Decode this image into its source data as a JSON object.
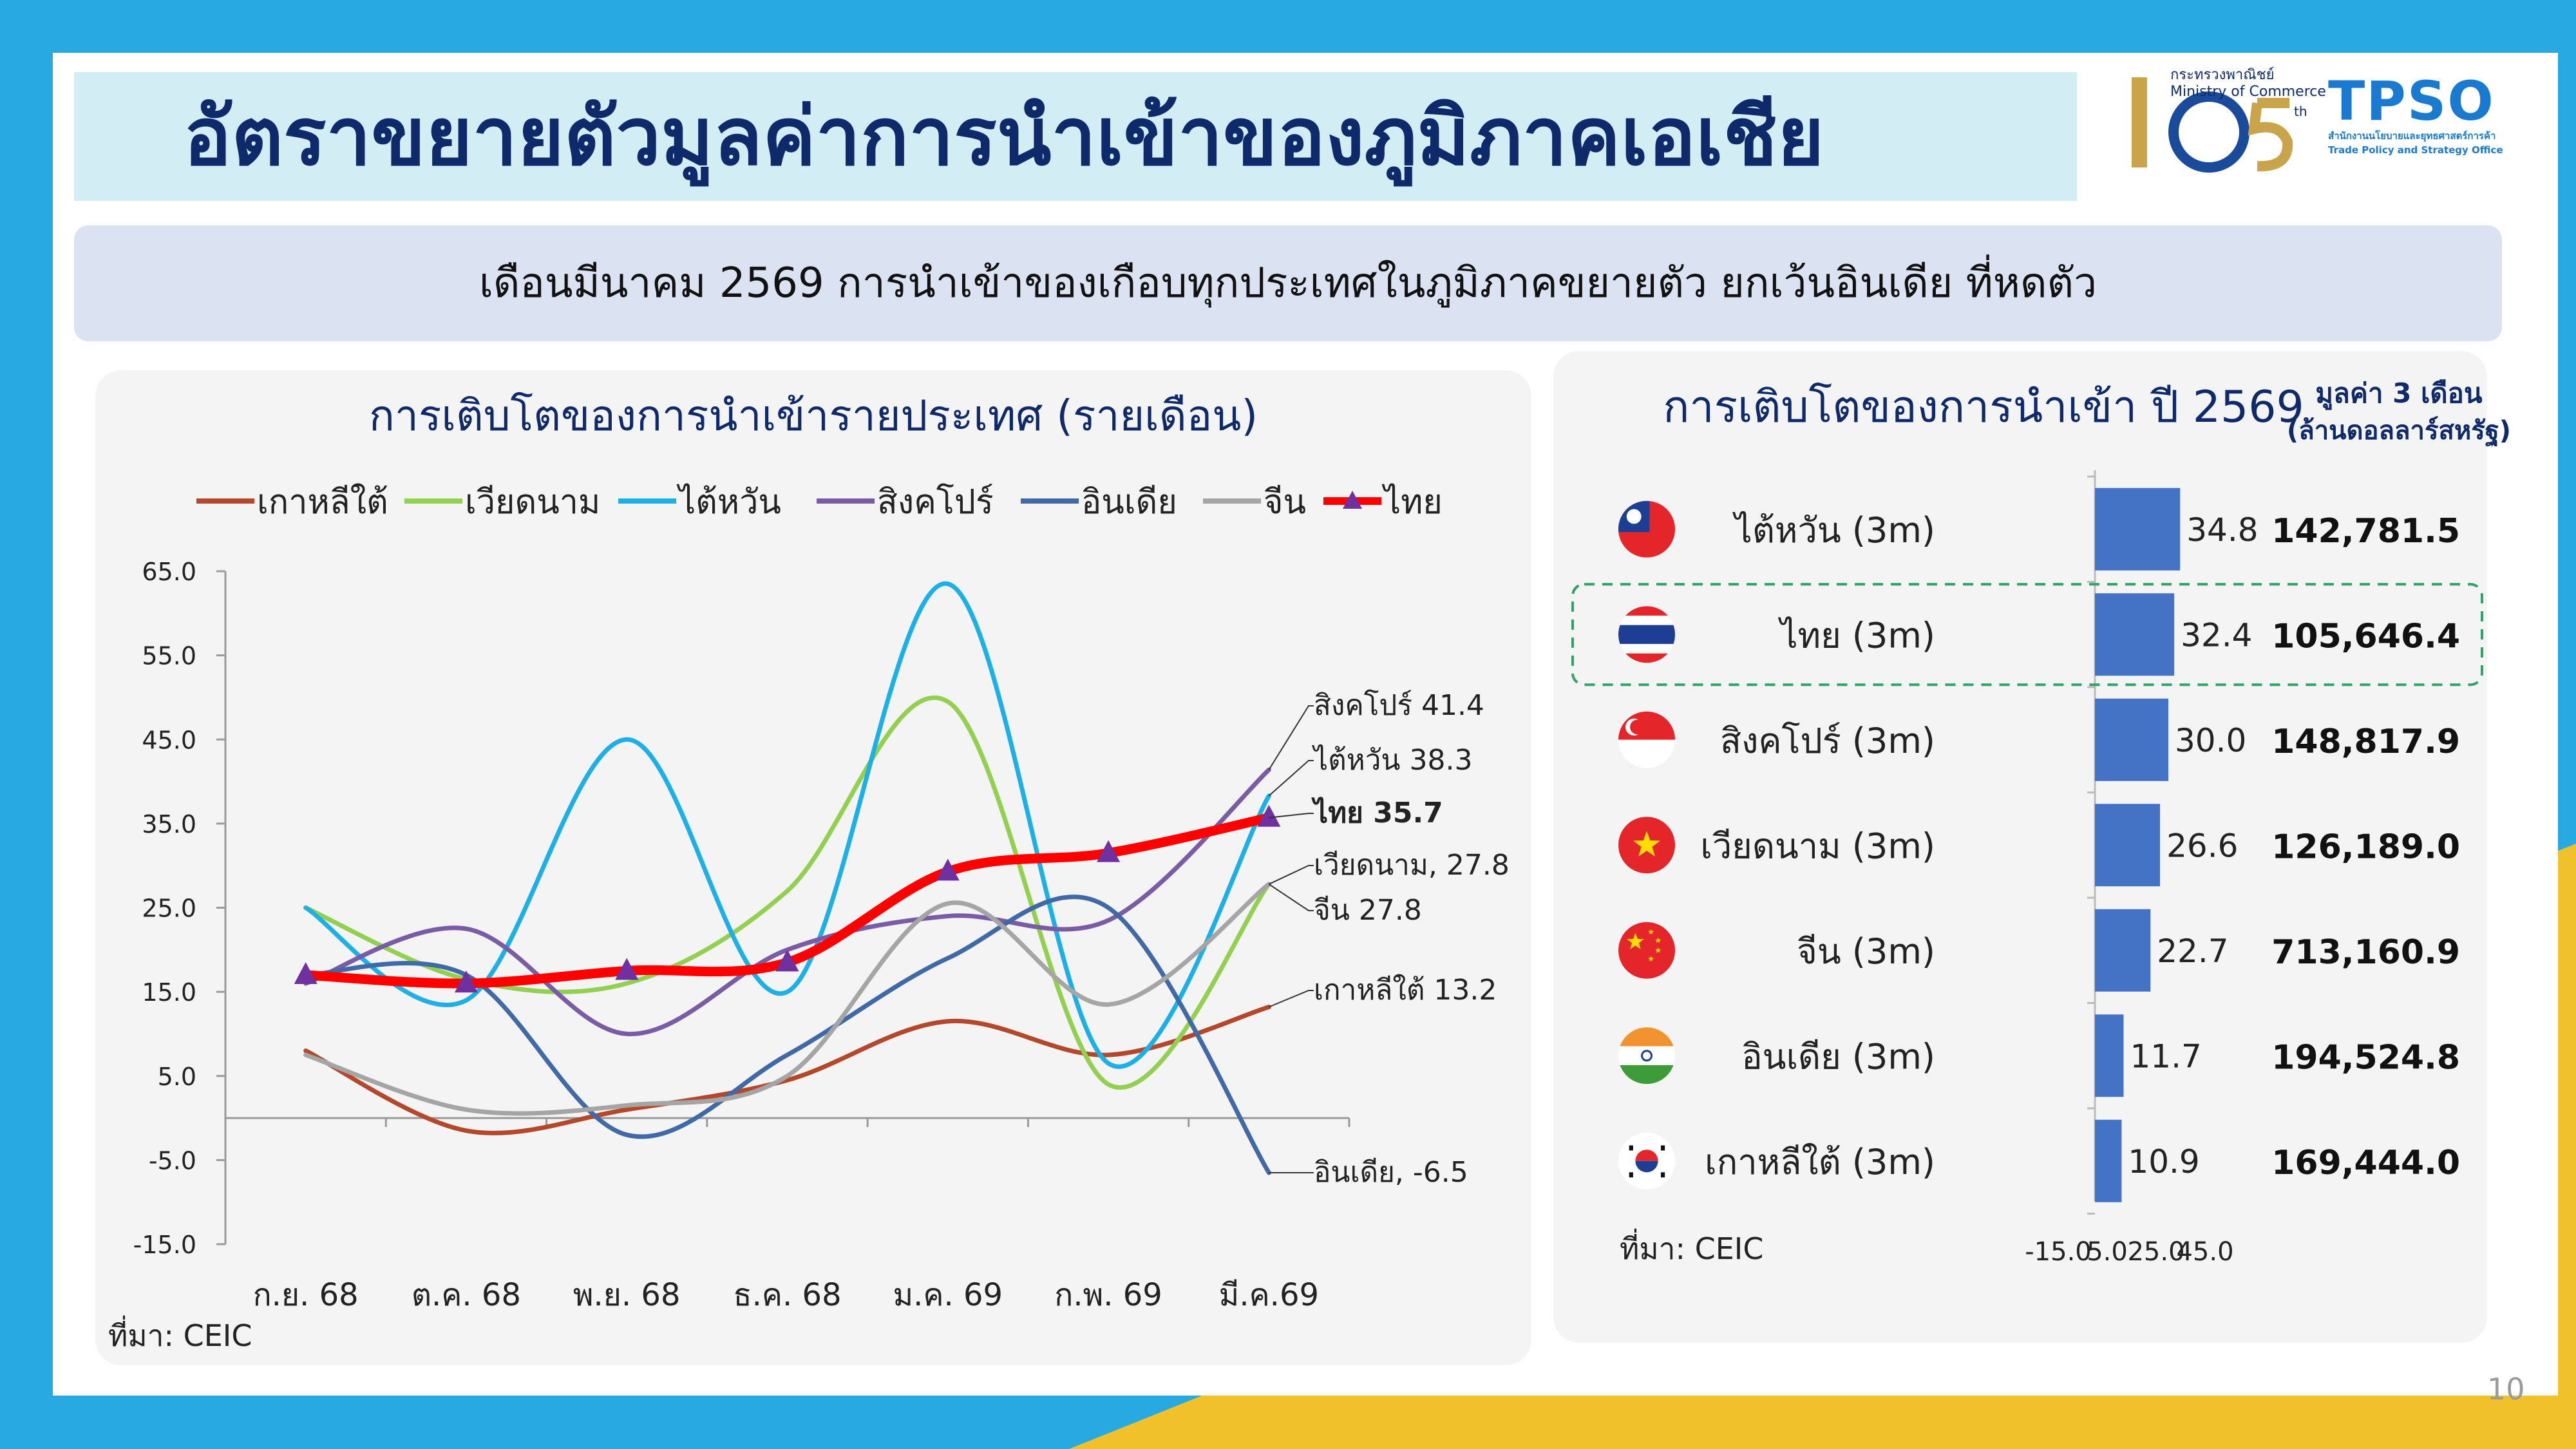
{
  "slide": {
    "title": "อัตราขยายตัวมูลค่าการนำเข้าของภูมิภาคเอเชีย",
    "subtitle": "เดือนมีนาคม 2569 การนำเข้าของเกือบทุกประเทศในภูมิภาคขยายตัว ยกเว้นอินเดีย ที่หดตัว",
    "slide_number": "10",
    "logo_moc_line1": "กระทรวงพาณิชย์",
    "logo_moc_line2": "Ministry of Commerce",
    "logo_moc_number": "105",
    "logo_moc_suffix": "th",
    "logo_tpso": "TPSO",
    "logo_tpso_line1": "สำนักงานนโยบายและยุทธศาสตร์การค้า",
    "logo_tpso_line2": "Trade Policy and Strategy Office"
  },
  "colors": {
    "background_blue": "#29a9e1",
    "accent_yellow": "#f0c12a",
    "title_navy": "#0e2a6b",
    "bar_blue": "#4472c4"
  },
  "chart_data": [
    {
      "type": "line",
      "title": "การเติบโตของการนำเข้ารายประเทศ (รายเดือน)",
      "source": "ที่มา: CEIC",
      "categories": [
        "ก.ย. 68",
        "ต.ค. 68",
        "พ.ย. 68",
        "ธ.ค. 68",
        "ม.ค. 69",
        "ก.พ. 69",
        "มี.ค.69"
      ],
      "ylim": [
        -15,
        65
      ],
      "yticks": [
        "65.0",
        "55.0",
        "45.0",
        "35.0",
        "25.0",
        "15.0",
        "5.0",
        "-5.0",
        "-15.0"
      ],
      "series": [
        {
          "name": "เกาหลีใต้",
          "color": "#b5472a",
          "width": 7,
          "values": [
            8.0,
            -1.5,
            1.0,
            4.5,
            11.5,
            7.5,
            13.2
          ],
          "end_label": "เกาหลีใต้ 13.2"
        },
        {
          "name": "เวียดนาม",
          "color": "#92d050",
          "width": 7,
          "values": [
            25.0,
            16.5,
            16.0,
            27.0,
            49.5,
            4.0,
            27.8
          ],
          "end_label": "เวียดนาม, 27.8"
        },
        {
          "name": "ไต้หวัน",
          "color": "#1db0e6",
          "width": 7,
          "values": [
            25.0,
            14.0,
            45.0,
            15.0,
            63.5,
            6.5,
            38.3
          ],
          "end_label": "ไต้หวัน 38.3"
        },
        {
          "name": "สิงคโปร์",
          "color": "#7a5ca6",
          "width": 7,
          "values": [
            16.0,
            22.5,
            10.0,
            20.0,
            24.0,
            23.5,
            41.4
          ],
          "end_label": "สิงคโปร์ 41.4"
        },
        {
          "name": "อินเดีย",
          "color": "#3f69a7",
          "width": 7,
          "values": [
            17.0,
            17.0,
            -2.0,
            7.5,
            19.0,
            25.0,
            -6.5
          ],
          "end_label": "อินเดีย, -6.5"
        },
        {
          "name": "จีน",
          "color": "#a5a5a5",
          "width": 7,
          "values": [
            7.5,
            1.0,
            1.5,
            5.0,
            25.5,
            13.5,
            27.8
          ],
          "end_label": "จีน 27.8"
        },
        {
          "name": "ไทย",
          "color": "#ff0000",
          "width": 15,
          "marker": "triangle",
          "marker_color": "#7030a0",
          "values": [
            17.0,
            16.0,
            17.5,
            18.5,
            29.3,
            31.5,
            35.7
          ],
          "end_label": "ไทย 35.7"
        }
      ]
    },
    {
      "type": "bar",
      "orientation": "horizontal",
      "title": "การเติบโตของการนำเข้า ปี 2569",
      "value_header_line1": "มูลค่า 3 เดือน",
      "value_header_line2": "(ล้านดอลลาร์สหรัฐ)",
      "source": "ที่มา: CEIC",
      "xlim": [
        -15,
        45
      ],
      "xticks": [
        "-15.0",
        "5.0",
        "25.0",
        "45.0"
      ],
      "xtick_values": [
        -15,
        5,
        25,
        45
      ],
      "highlight": "ไทย (3m)",
      "categories": [
        "ไต้หวัน (3m)",
        "ไทย (3m)",
        "สิงคโปร์ (3m)",
        "เวียดนาม (3m)",
        "จีน (3m)",
        "อินเดีย (3m)",
        "เกาหลีใต้ (3m)"
      ],
      "flags": [
        "taiwan-flag",
        "thailand-flag",
        "singapore-flag",
        "vietnam-flag",
        "china-flag",
        "india-flag",
        "south-korea-flag"
      ],
      "values": [
        34.8,
        32.4,
        30.0,
        26.6,
        22.7,
        11.7,
        10.9
      ],
      "value_labels": [
        "34.8",
        "32.4",
        "30.0",
        "26.6",
        "22.7",
        "11.7",
        "10.9"
      ],
      "amounts": [
        "142,781.5",
        "105,646.4",
        "148,817.9",
        "126,189.0",
        "713,160.9",
        "194,524.8",
        "169,444.0"
      ]
    }
  ]
}
